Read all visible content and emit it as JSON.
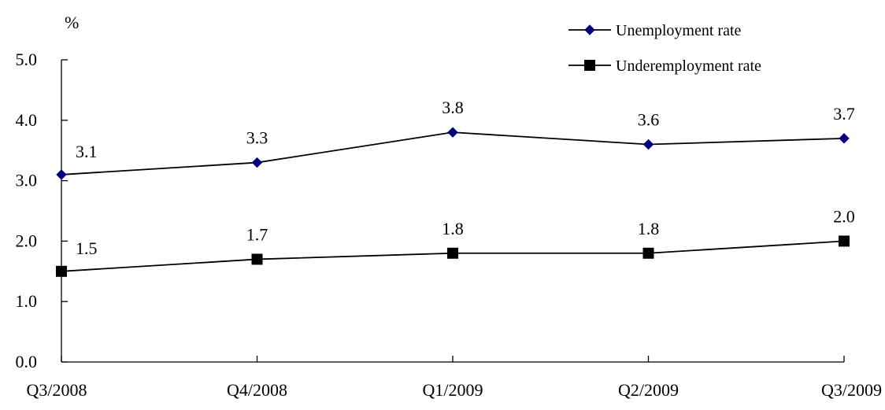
{
  "chart_data": {
    "type": "line",
    "categories": [
      "Q3/2008",
      "Q4/2008",
      "Q1/2009",
      "Q2/2009",
      "Q3/2009"
    ],
    "series": [
      {
        "name": "Unemployment rate",
        "values": [
          3.1,
          3.3,
          3.8,
          3.6,
          3.7
        ],
        "labels": [
          "3.1",
          "3.3",
          "3.8",
          "3.6",
          "3.7"
        ],
        "marker": "diamond",
        "color": "#000080"
      },
      {
        "name": "Underemployment rate",
        "values": [
          1.5,
          1.7,
          1.8,
          1.8,
          2.0
        ],
        "labels": [
          "1.5",
          "1.7",
          "1.8",
          "1.8",
          "2.0"
        ],
        "marker": "square",
        "color": "#000000"
      }
    ],
    "yunit": "%",
    "ylim": [
      0,
      5
    ],
    "yticks": [
      "0.0",
      "1.0",
      "2.0",
      "3.0",
      "4.0",
      "5.0"
    ],
    "grid": false,
    "legend_position": "top-right",
    "line_color": "#000000"
  }
}
